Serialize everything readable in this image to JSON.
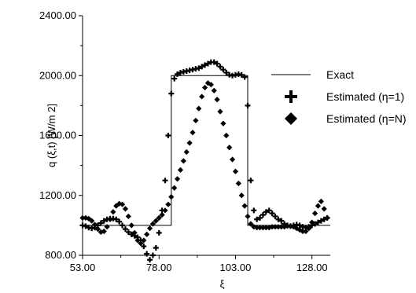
{
  "chart_data": {
    "type": "line",
    "title": "",
    "xlabel": "ξ",
    "ylabel": "q (ξ,t) [W/m 2]",
    "xlim": [
      53,
      134
    ],
    "ylim": [
      800,
      2400
    ],
    "xticks": [
      "53.00",
      "78.00",
      "103.00",
      "128.00"
    ],
    "yticks": [
      "800.00",
      "1200.00",
      "1600.00",
      "2000.00",
      "2400.00"
    ],
    "grid": false,
    "legend_position": "right",
    "series": [
      {
        "name": "Exact",
        "marker": "line",
        "x": [
          53,
          82,
          82,
          107,
          107,
          134
        ],
        "y": [
          1000,
          1000,
          2000,
          2000,
          1000,
          1000
        ]
      },
      {
        "name": "Estimated (η=1)",
        "marker": "plus",
        "x": [
          53,
          54,
          55,
          56,
          57,
          58,
          59,
          60,
          61,
          62,
          63,
          64,
          65,
          66,
          67,
          68,
          69,
          70,
          71,
          72,
          73,
          74,
          75,
          76,
          77,
          78,
          79,
          80,
          81,
          82,
          83,
          84,
          85,
          86,
          87,
          88,
          89,
          90,
          91,
          92,
          93,
          94,
          95,
          96,
          97,
          98,
          99,
          100,
          101,
          102,
          103,
          104,
          105,
          106,
          107,
          108,
          109,
          110,
          111,
          112,
          113,
          114,
          115,
          116,
          117,
          118,
          119,
          120,
          121,
          122,
          123,
          124,
          125,
          126,
          127,
          128,
          129,
          130,
          131,
          132,
          133
        ],
        "y": [
          1000,
          995,
          985,
          980,
          985,
          1000,
          1015,
          1030,
          1040,
          1045,
          1045,
          1040,
          1025,
          1000,
          975,
          955,
          940,
          930,
          920,
          900,
          860,
          810,
          770,
          800,
          850,
          950,
          1100,
          1300,
          1600,
          1880,
          1980,
          2010,
          2020,
          2025,
          2030,
          2035,
          2040,
          2045,
          2050,
          2060,
          2070,
          2080,
          2090,
          2090,
          2080,
          2060,
          2040,
          2020,
          2005,
          2000,
          2005,
          2010,
          2005,
          1990,
          1800,
          1300,
          1100,
          1040,
          1050,
          1070,
          1090,
          1100,
          1080,
          1060,
          1040,
          1030,
          1010,
          1000,
          995,
          1000,
          1005,
          1000,
          990,
          985,
          990,
          1000,
          1010,
          1020,
          1030,
          1040,
          1050
        ]
      },
      {
        "name": "Estimated (η=N)",
        "marker": "diamond",
        "x": [
          53,
          54,
          55,
          56,
          57,
          58,
          59,
          60,
          61,
          62,
          63,
          64,
          65,
          66,
          67,
          68,
          69,
          70,
          71,
          72,
          73,
          74,
          75,
          76,
          77,
          78,
          79,
          80,
          81,
          82,
          83,
          84,
          85,
          86,
          87,
          88,
          89,
          90,
          91,
          92,
          93,
          94,
          95,
          96,
          97,
          98,
          99,
          100,
          101,
          102,
          103,
          104,
          105,
          106,
          107,
          108,
          109,
          110,
          111,
          112,
          113,
          114,
          115,
          116,
          117,
          118,
          119,
          120,
          121,
          122,
          123,
          124,
          125,
          126,
          127,
          128,
          129,
          130,
          131,
          132,
          133
        ],
        "y": [
          1050,
          1050,
          1045,
          1030,
          1005,
          975,
          955,
          960,
          990,
          1040,
          1090,
          1130,
          1145,
          1140,
          1110,
          1060,
          1000,
          950,
          900,
          880,
          900,
          940,
          980,
          1010,
          1030,
          1050,
          1070,
          1100,
          1140,
          1190,
          1250,
          1310,
          1370,
          1430,
          1490,
          1550,
          1620,
          1700,
          1780,
          1860,
          1920,
          1950,
          1940,
          1900,
          1840,
          1760,
          1680,
          1600,
          1520,
          1440,
          1360,
          1280,
          1200,
          1130,
          1060,
          1010,
          990,
          985,
          985,
          985,
          985,
          985,
          990,
          990,
          990,
          990,
          990,
          995,
          995,
          990,
          980,
          970,
          960,
          960,
          980,
          1020,
          1080,
          1130,
          1160,
          1110,
          1050
        ]
      }
    ]
  }
}
